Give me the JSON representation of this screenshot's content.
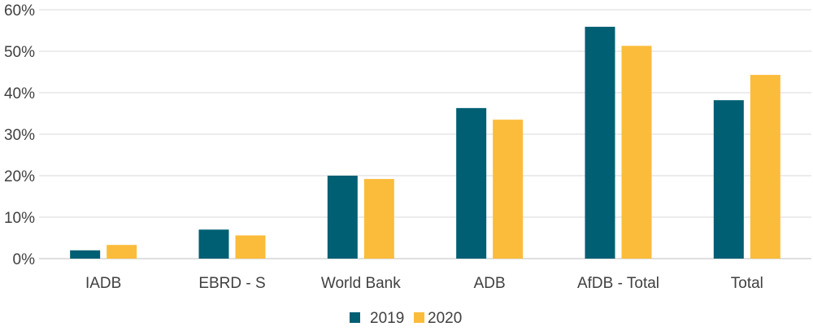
{
  "chart_data": {
    "type": "bar",
    "categories": [
      "IADB",
      "EBRD - S",
      "World Bank",
      "ADB",
      "AfDB - Total",
      "Total"
    ],
    "series": [
      {
        "name": "2019",
        "values": [
          2.0,
          7.0,
          20.0,
          36.3,
          55.9,
          38.2
        ],
        "color": "#005f73"
      },
      {
        "name": "2020",
        "values": [
          3.3,
          5.6,
          19.2,
          33.5,
          51.3,
          44.3
        ],
        "color": "#fbbc3c"
      }
    ],
    "ylim": [
      0,
      60
    ],
    "yticks": [
      "0%",
      "10%",
      "20%",
      "30%",
      "40%",
      "50%",
      "60%"
    ],
    "grid": true,
    "legend_position": "bottom-center"
  }
}
